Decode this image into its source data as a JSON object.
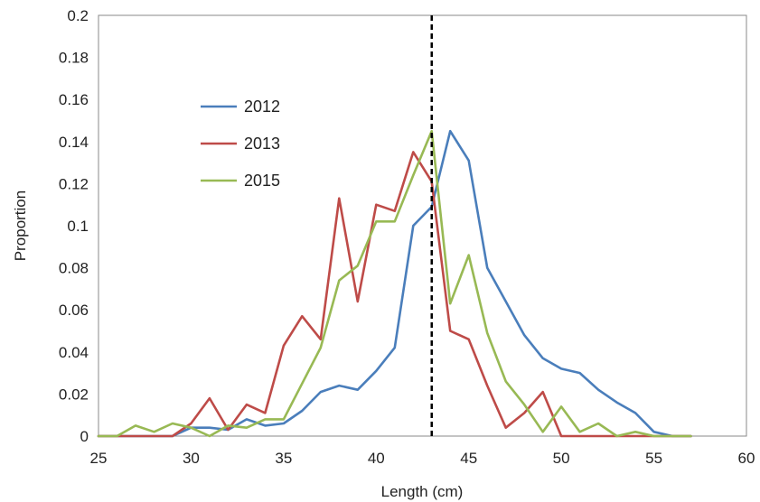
{
  "chart_data": {
    "type": "line",
    "title": "",
    "xlabel": "Length (cm)",
    "ylabel": "Proportion",
    "xlim": [
      25,
      60
    ],
    "ylim": [
      0,
      0.2
    ],
    "xticks": [
      25,
      30,
      35,
      40,
      45,
      50,
      55,
      60
    ],
    "yticks": [
      0,
      0.02,
      0.04,
      0.06,
      0.08,
      0.1,
      0.12,
      0.14,
      0.16,
      0.18,
      0.2
    ],
    "ytick_labels": [
      "0",
      "0.02",
      "0.04",
      "0.06",
      "0.08",
      "0.1",
      "0.12",
      "0.14",
      "0.16",
      "0.18",
      "0.2"
    ],
    "grid": false,
    "legend_position": "upper-left",
    "reference_line": {
      "x": 43,
      "style": "dashed",
      "color": "#000000"
    },
    "x": [
      25,
      26,
      27,
      28,
      29,
      30,
      31,
      32,
      33,
      34,
      35,
      36,
      37,
      38,
      39,
      40,
      41,
      42,
      43,
      44,
      45,
      46,
      47,
      48,
      49,
      50,
      51,
      52,
      53,
      54,
      55,
      56,
      57
    ],
    "series": [
      {
        "name": "2012",
        "color": "#4a7ebb",
        "values": [
          0,
          0,
          0,
          0,
          0,
          0.004,
          0.004,
          0.003,
          0.008,
          0.005,
          0.006,
          0.012,
          0.021,
          0.024,
          0.022,
          0.031,
          0.042,
          0.1,
          0.109,
          0.145,
          0.131,
          0.08,
          0.064,
          0.048,
          0.037,
          0.032,
          0.03,
          0.022,
          0.016,
          0.011,
          0.002,
          0,
          0
        ]
      },
      {
        "name": "2013",
        "color": "#be4b48",
        "values": [
          0,
          0,
          0,
          0,
          0,
          0.006,
          0.018,
          0.003,
          0.015,
          0.011,
          0.043,
          0.057,
          0.046,
          0.113,
          0.064,
          0.11,
          0.107,
          0.135,
          0.121,
          0.05,
          0.046,
          0.024,
          0.004,
          0.011,
          0.021,
          0,
          0,
          0,
          0,
          0,
          0,
          0,
          0
        ]
      },
      {
        "name": "2015",
        "color": "#98b954",
        "values": [
          0,
          0,
          0.005,
          0.002,
          0.006,
          0.004,
          0,
          0.005,
          0.004,
          0.008,
          0.008,
          0.025,
          0.042,
          0.074,
          0.081,
          0.102,
          0.102,
          0.124,
          0.145,
          0.063,
          0.086,
          0.049,
          0.026,
          0.015,
          0.002,
          0.014,
          0.002,
          0.006,
          0,
          0.002,
          0,
          0,
          0
        ]
      }
    ]
  }
}
